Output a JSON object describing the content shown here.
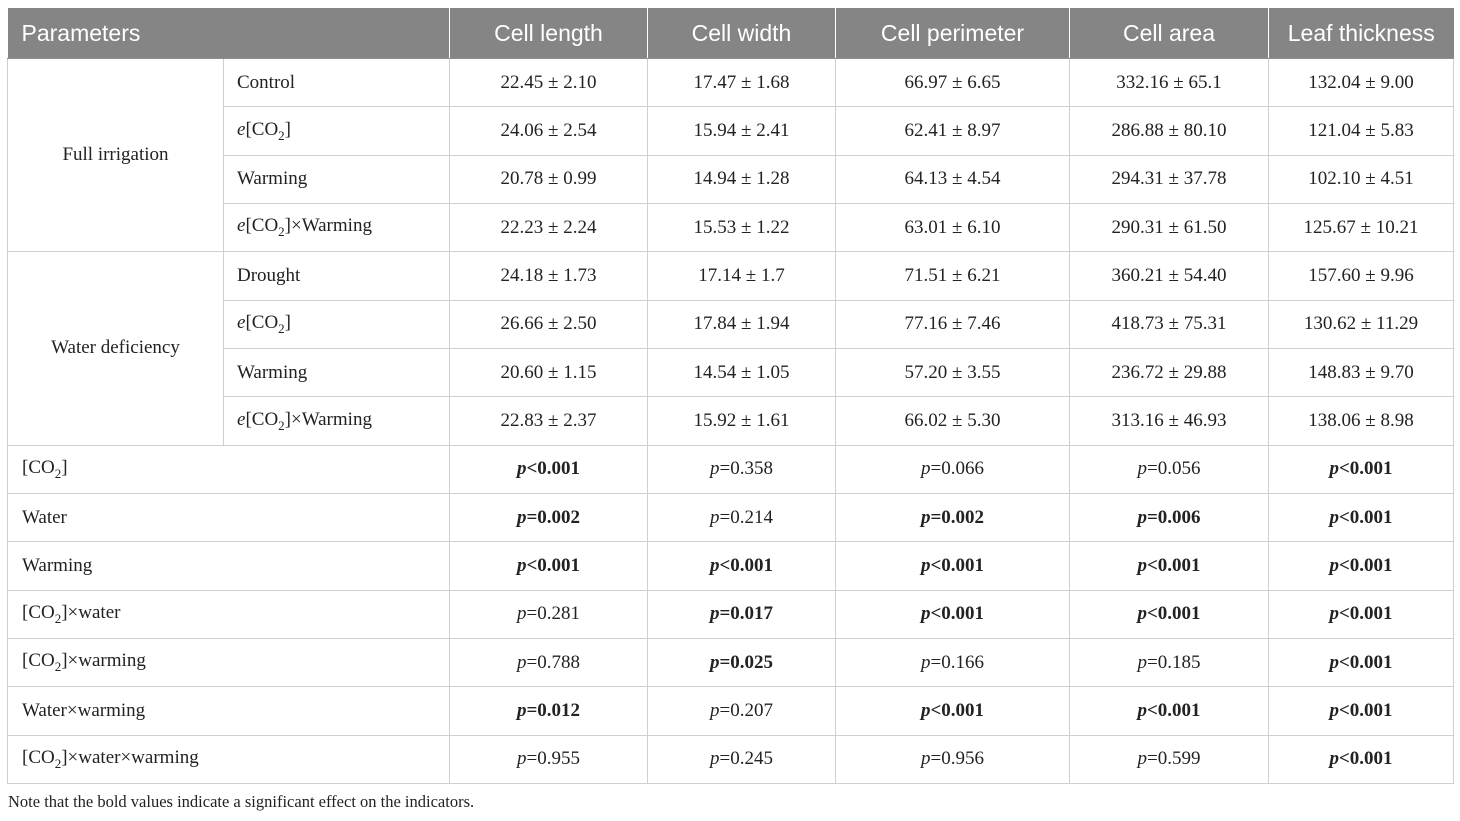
{
  "headers": [
    "Parameters",
    "Cell length",
    "Cell width",
    "Cell perimeter",
    "Cell area",
    "Leaf thickness"
  ],
  "groups": [
    {
      "name": "Full irrigation",
      "rows": [
        {
          "treatment": "Control",
          "values": [
            "22.45 ± 2.10",
            "17.47 ± 1.68",
            "66.97 ± 6.65",
            "332.16 ± 65.1",
            "132.04 ± 9.00"
          ]
        },
        {
          "treatment": "e[CO2]",
          "values": [
            "24.06 ± 2.54",
            "15.94 ± 2.41",
            "62.41 ± 8.97",
            "286.88 ± 80.10",
            "121.04 ± 5.83"
          ]
        },
        {
          "treatment": "Warming",
          "values": [
            "20.78 ± 0.99",
            "14.94 ± 1.28",
            "64.13 ± 4.54",
            "294.31 ± 37.78",
            "102.10 ± 4.51"
          ]
        },
        {
          "treatment": "e[CO2]×Warming",
          "values": [
            "22.23 ± 2.24",
            "15.53 ± 1.22",
            "63.01 ± 6.10",
            "290.31 ± 61.50",
            "125.67 ± 10.21"
          ]
        }
      ]
    },
    {
      "name": "Water deficiency",
      "rows": [
        {
          "treatment": "Drought",
          "values": [
            "24.18 ± 1.73",
            "17.14 ± 1.7",
            "71.51 ± 6.21",
            "360.21 ± 54.40",
            "157.60 ± 9.96"
          ]
        },
        {
          "treatment": "e[CO2]",
          "values": [
            "26.66 ± 2.50",
            "17.84 ± 1.94",
            "77.16 ± 7.46",
            "418.73 ± 75.31",
            "130.62 ± 11.29"
          ]
        },
        {
          "treatment": "Warming",
          "values": [
            "20.60 ± 1.15",
            "14.54 ± 1.05",
            "57.20 ± 3.55",
            "236.72 ± 29.88",
            "148.83 ± 9.70"
          ]
        },
        {
          "treatment": "e[CO2]×Warming",
          "values": [
            "22.83 ± 2.37",
            "15.92 ± 1.61",
            "66.02 ± 5.30",
            "313.16 ± 46.93",
            "138.06 ± 8.98"
          ]
        }
      ]
    }
  ],
  "stats": [
    {
      "label": "[CO2]",
      "cells": [
        {
          "p": "p",
          "v": "<0.001",
          "bold": true
        },
        {
          "p": "p",
          "v": "=0.358",
          "bold": false
        },
        {
          "p": "p",
          "v": "=0.066",
          "bold": false
        },
        {
          "p": "p",
          "v": "=0.056",
          "bold": false
        },
        {
          "p": "p",
          "v": "<0.001",
          "bold": true
        }
      ]
    },
    {
      "label": "Water",
      "cells": [
        {
          "p": "p",
          "v": "=0.002",
          "bold": true
        },
        {
          "p": "p",
          "v": "=0.214",
          "bold": false
        },
        {
          "p": "p",
          "v": "=0.002",
          "bold": true
        },
        {
          "p": "p",
          "v": "=0.006",
          "bold": true
        },
        {
          "p": "p",
          "v": "<0.001",
          "bold": true
        }
      ]
    },
    {
      "label": "Warming",
      "cells": [
        {
          "p": "p",
          "v": "<0.001",
          "bold": true
        },
        {
          "p": "p",
          "v": "<0.001",
          "bold": true
        },
        {
          "p": "p",
          "v": "<0.001",
          "bold": true
        },
        {
          "p": "p",
          "v": "<0.001",
          "bold": true
        },
        {
          "p": "p",
          "v": "<0.001",
          "bold": true
        }
      ]
    },
    {
      "label": "[CO2]×water",
      "cells": [
        {
          "p": "p",
          "v": "=0.281",
          "bold": false
        },
        {
          "p": "p",
          "v": "=0.017",
          "bold": true
        },
        {
          "p": "p",
          "v": "<0.001",
          "bold": true
        },
        {
          "p": "p",
          "v": "<0.001",
          "bold": true
        },
        {
          "p": "p",
          "v": "<0.001",
          "bold": true
        }
      ]
    },
    {
      "label": "[CO2]×warming",
      "cells": [
        {
          "p": "p",
          "v": "=0.788",
          "bold": false
        },
        {
          "p": "p",
          "v": "=0.025",
          "bold": true
        },
        {
          "p": "p",
          "v": "=0.166",
          "bold": false
        },
        {
          "p": "p",
          "v": "=0.185",
          "bold": false
        },
        {
          "p": "p",
          "v": "<0.001",
          "bold": true
        }
      ]
    },
    {
      "label": "Water×warming",
      "cells": [
        {
          "p": "p",
          "v": "=0.012",
          "bold": true
        },
        {
          "p": "p",
          "v": "=0.207",
          "bold": false
        },
        {
          "p": "p",
          "v": "<0.001",
          "bold": true
        },
        {
          "p": "p",
          "v": "<0.001",
          "bold": true
        },
        {
          "p": "p",
          "v": "<0.001",
          "bold": true
        }
      ]
    },
    {
      "label": "[CO2]×water×warming",
      "cells": [
        {
          "p": "p",
          "v": "=0.955",
          "bold": false
        },
        {
          "p": "p",
          "v": "=0.245",
          "bold": false
        },
        {
          "p": "p",
          "v": "=0.956",
          "bold": false
        },
        {
          "p": "p",
          "v": "=0.599",
          "bold": false
        },
        {
          "p": "p",
          "v": "<0.001",
          "bold": true
        }
      ]
    }
  ],
  "note": "Note that the bold values indicate a significant effect on the indicators.",
  "colors": {
    "header_bg": "#858585",
    "header_text": "#ffffff",
    "grid": "#cfcfcf"
  }
}
